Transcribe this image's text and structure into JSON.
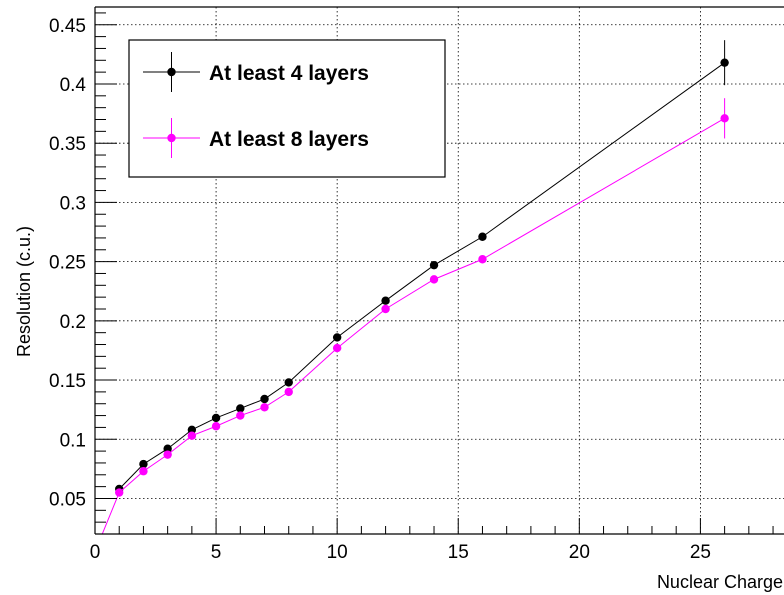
{
  "chart_data": {
    "type": "line",
    "title": "",
    "xlabel": "Nuclear Charge",
    "ylabel": "Resolution (c.u.)",
    "xlim": [
      0,
      28.7
    ],
    "ylim": [
      0.02,
      0.465
    ],
    "xticks": [
      0,
      5,
      10,
      15,
      20,
      25
    ],
    "xtick_labels": [
      "0",
      "5",
      "10",
      "15",
      "20",
      "25"
    ],
    "yticks": [
      0.05,
      0.1,
      0.15,
      0.2,
      0.25,
      0.3,
      0.35,
      0.4,
      0.45
    ],
    "ytick_labels": [
      "0.05",
      "0.1",
      "0.15",
      "0.2",
      "0.25",
      "0.3",
      "0.35",
      "0.4",
      "0.45"
    ],
    "grid": true,
    "legend_position": "top-left",
    "series": [
      {
        "name": "At least 4 layers",
        "color": "#000000",
        "x": [
          1,
          2,
          3,
          4,
          5,
          6,
          7,
          8,
          10,
          12,
          14,
          16,
          26
        ],
        "y": [
          0.058,
          0.079,
          0.092,
          0.108,
          0.118,
          0.126,
          0.134,
          0.148,
          0.186,
          0.217,
          0.247,
          0.271,
          0.418
        ],
        "err": [
          0,
          0,
          0,
          0,
          0,
          0,
          0,
          0,
          0,
          0,
          0,
          0,
          0.019
        ]
      },
      {
        "name": "At least 8 layers",
        "color": "#ff00ff",
        "x": [
          0,
          1,
          2,
          3,
          4,
          5,
          6,
          7,
          8,
          10,
          12,
          14,
          16,
          26
        ],
        "y": [
          0.005,
          0.055,
          0.073,
          0.087,
          0.103,
          0.111,
          0.12,
          0.127,
          0.14,
          0.177,
          0.21,
          0.235,
          0.252,
          0.371
        ],
        "marker": [
          false,
          true,
          true,
          true,
          true,
          true,
          true,
          true,
          true,
          true,
          true,
          true,
          true,
          true
        ],
        "err": [
          0,
          0,
          0,
          0,
          0,
          0,
          0,
          0,
          0,
          0,
          0,
          0,
          0,
          0.017
        ]
      }
    ]
  }
}
